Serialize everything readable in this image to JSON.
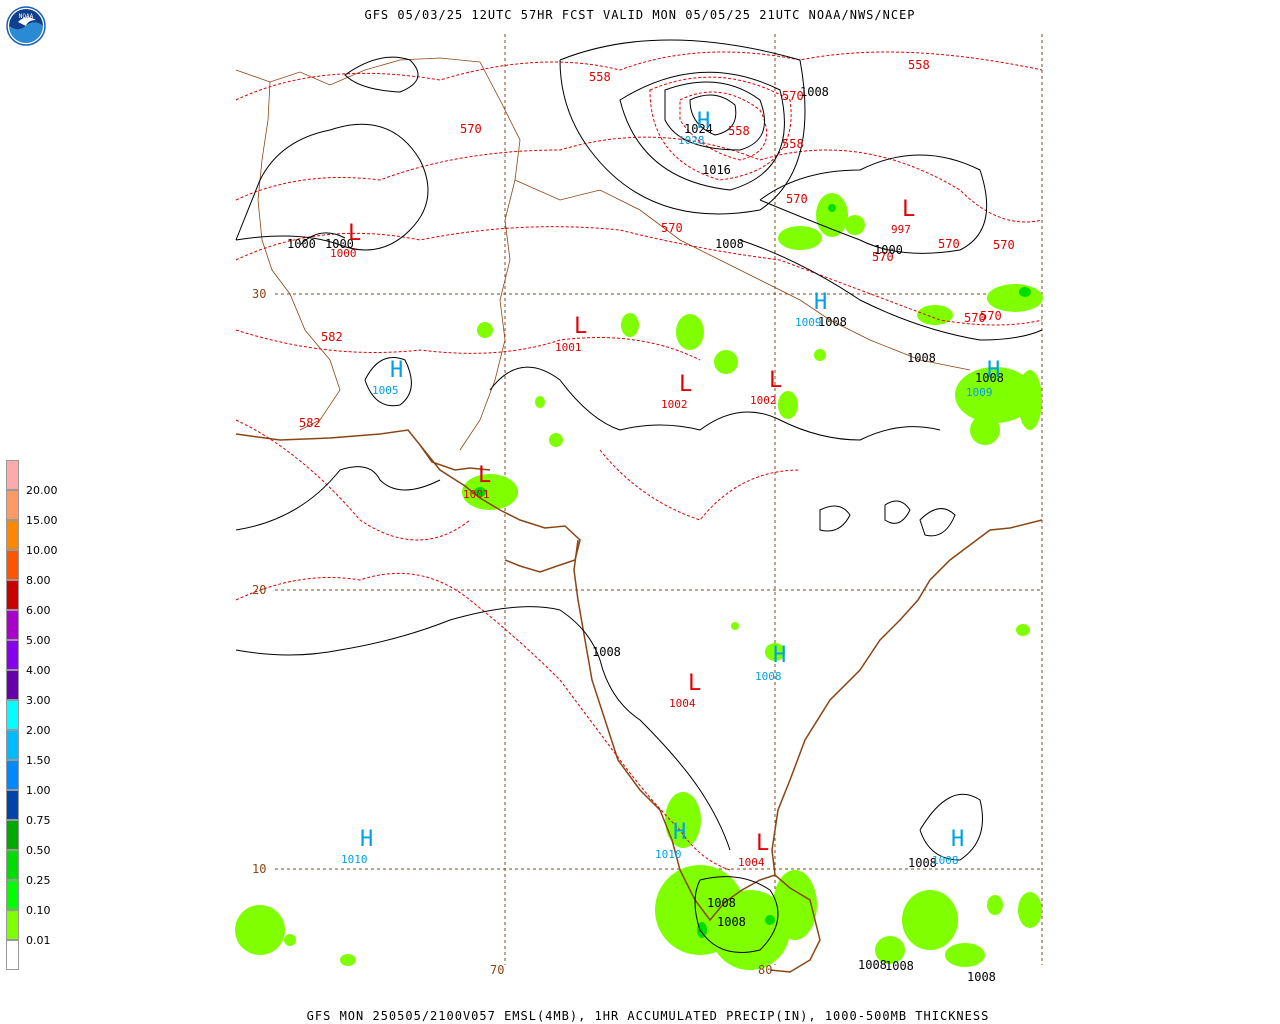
{
  "header": {
    "title": "GFS 05/03/25 12UTC 57HR FCST VALID MON 05/05/25 21UTC NOAA/NWS/NCEP"
  },
  "footer": {
    "text": "GFS MON 250505/2100V057 EMSL(4MB), 1HR ACCUMULATED PRECIP(IN), 1000-500MB THICKNESS"
  },
  "logo": {
    "label": "NOAA"
  },
  "colors": {
    "high": "#00a0e8",
    "low": "#e00000",
    "thickness": "#e00000",
    "isobar": "#000000",
    "coast": "#8b4513",
    "precip": "#7fff00",
    "grid": "#8b4513"
  },
  "legend": {
    "levels": [
      "20.00",
      "15.00",
      "10.00",
      "8.00",
      "6.00",
      "5.00",
      "4.00",
      "3.00",
      "2.00",
      "1.50",
      "1.00",
      "0.75",
      "0.50",
      "0.25",
      "0.10",
      "0.01"
    ],
    "colors": [
      "#ffaaaa",
      "#ff9966",
      "#ff8800",
      "#ff5500",
      "#cc0000",
      "#aa00cc",
      "#8800ee",
      "#6600aa",
      "#00ffff",
      "#00bbff",
      "#0088ff",
      "#0044aa",
      "#00aa00",
      "#00dd00",
      "#00ff00",
      "#7fff00",
      "#ffffff"
    ]
  },
  "grid_labels": [
    {
      "id": "lat30",
      "text": "30"
    },
    {
      "id": "lat20",
      "text": "20"
    },
    {
      "id": "lat10",
      "text": "10"
    },
    {
      "id": "lon70",
      "text": "70"
    },
    {
      "id": "lon80",
      "text": "80"
    }
  ],
  "highs": [
    {
      "letter": "H",
      "value": "1028"
    },
    {
      "letter": "H",
      "value": "1005"
    },
    {
      "letter": "H",
      "value": "1009"
    },
    {
      "letter": "H",
      "value": "1009"
    },
    {
      "letter": "H",
      "value": "1008"
    },
    {
      "letter": "H",
      "value": "1010"
    },
    {
      "letter": "H",
      "value": "1010"
    },
    {
      "letter": "H",
      "value": "1008"
    }
  ],
  "lows": [
    {
      "letter": "L",
      "value": "1000"
    },
    {
      "letter": "L",
      "value": "1001"
    },
    {
      "letter": "L",
      "value": "1002"
    },
    {
      "letter": "L",
      "value": "1002"
    },
    {
      "letter": "L",
      "value": "1001"
    },
    {
      "letter": "L",
      "value": "1004"
    },
    {
      "letter": "L",
      "value": "1004"
    },
    {
      "letter": "L",
      "value": "997"
    }
  ],
  "thickness_labels": [
    "558",
    "570",
    "558",
    "558",
    "570",
    "570",
    "570",
    "570",
    "570",
    "582",
    "582",
    "570",
    "570",
    "558",
    "570"
  ],
  "isobar_labels": [
    "1000",
    "1000",
    "1024",
    "1016",
    "1008",
    "1008",
    "1000",
    "1008",
    "1008",
    "1008",
    "1008",
    "1008",
    "1008",
    "1008",
    "1008",
    "1008",
    "1008"
  ]
}
